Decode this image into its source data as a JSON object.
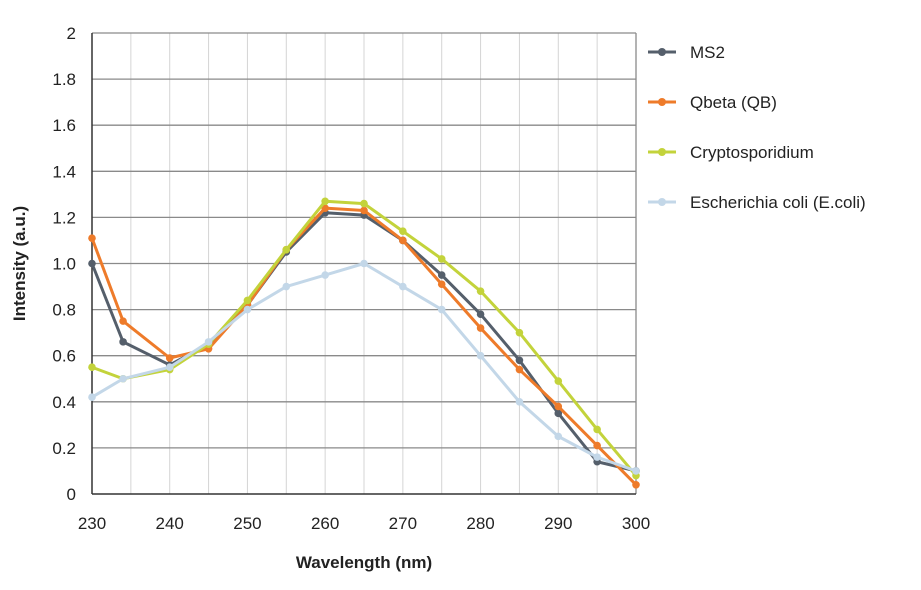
{
  "chart_data": {
    "type": "line",
    "title": "",
    "xlabel": "Wavelength (nm)",
    "ylabel": "Intensity (a.u.)",
    "xlim": [
      230,
      300
    ],
    "ylim": [
      0,
      2
    ],
    "x_ticks": [
      "230",
      "240",
      "250",
      "260",
      "270",
      "280",
      "290",
      "300"
    ],
    "x_tick_values": [
      230,
      240,
      250,
      260,
      270,
      280,
      290,
      300
    ],
    "y_ticks": [
      "0",
      "0.2",
      "0.4",
      "0.6",
      "0.8",
      "1.0",
      "1.2",
      "1.4",
      "1.6",
      "1.8",
      "2"
    ],
    "y_tick_values": [
      0,
      0.2,
      0.4,
      0.6,
      0.8,
      1.0,
      1.2,
      1.4,
      1.6,
      1.8,
      2
    ],
    "grid": true,
    "legend_position": "right",
    "series": [
      {
        "name": "MS2",
        "color": "#555f6b",
        "x": [
          230,
          234,
          240,
          245,
          250,
          255,
          260,
          265,
          270,
          275,
          280,
          285,
          290,
          295,
          300
        ],
        "y": [
          1.0,
          0.66,
          0.56,
          0.65,
          0.82,
          1.05,
          1.22,
          1.21,
          1.1,
          0.95,
          0.78,
          0.58,
          0.35,
          0.14,
          0.1
        ]
      },
      {
        "name": "Qbeta (QB)",
        "color": "#ee7b2a",
        "x": [
          230,
          234,
          240,
          245,
          250,
          255,
          260,
          265,
          270,
          275,
          280,
          285,
          290,
          295,
          300
        ],
        "y": [
          1.11,
          0.75,
          0.59,
          0.63,
          0.82,
          1.06,
          1.24,
          1.23,
          1.1,
          0.91,
          0.72,
          0.54,
          0.38,
          0.21,
          0.04
        ]
      },
      {
        "name": "Cryptosporidium",
        "color": "#c3d33b",
        "x": [
          230,
          234,
          240,
          245,
          250,
          255,
          260,
          265,
          270,
          275,
          280,
          285,
          290,
          295,
          300
        ],
        "y": [
          0.55,
          0.5,
          0.54,
          0.65,
          0.84,
          1.06,
          1.27,
          1.26,
          1.14,
          1.02,
          0.88,
          0.7,
          0.49,
          0.28,
          0.08
        ]
      },
      {
        "name": "Escherichia coli (E.coli)",
        "color": "#c3d7e8",
        "x": [
          230,
          234,
          240,
          245,
          250,
          255,
          260,
          265,
          270,
          275,
          280,
          285,
          290,
          295,
          300
        ],
        "y": [
          0.42,
          0.5,
          0.55,
          0.66,
          0.8,
          0.9,
          0.95,
          1.0,
          0.9,
          0.8,
          0.6,
          0.4,
          0.25,
          0.16,
          0.1
        ]
      }
    ]
  }
}
